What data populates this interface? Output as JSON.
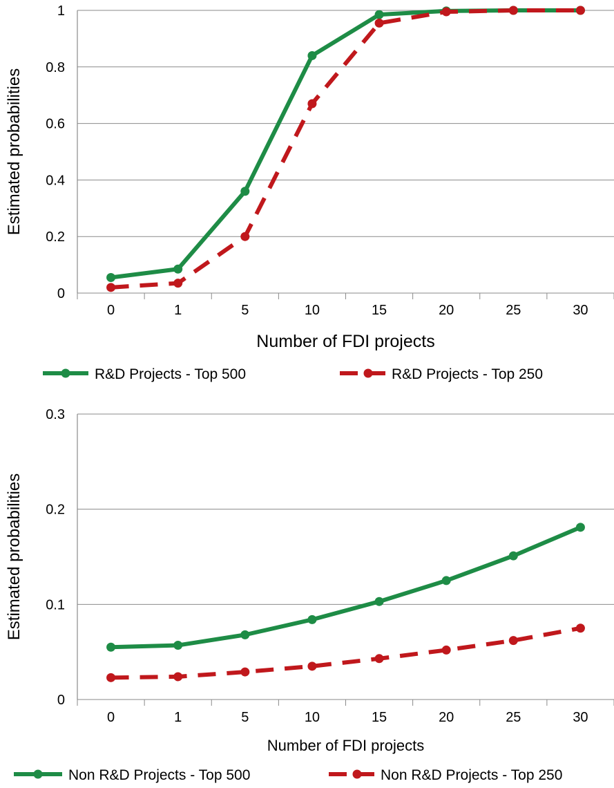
{
  "chart_data": [
    {
      "type": "line",
      "categories": [
        "0",
        "1",
        "5",
        "10",
        "15",
        "20",
        "25",
        "30"
      ],
      "xlabel": "Number of FDI projects",
      "ylabel": "Estimated probabilities",
      "ylim": [
        0,
        1
      ],
      "yticks": [
        "0",
        "0.2",
        "0.4",
        "0.6",
        "0.8",
        "1"
      ],
      "grid": true,
      "legend_position": "bottom",
      "series": [
        {
          "name": "R&D Projects - Top 500",
          "color": "#1e8c46",
          "style": "solid",
          "values": [
            0.055,
            0.085,
            0.36,
            0.84,
            0.985,
            0.998,
            1.0,
            1.0
          ]
        },
        {
          "name": "R&D Projects - Top 250",
          "color": "#c0181c",
          "style": "dashed",
          "values": [
            0.02,
            0.035,
            0.2,
            0.67,
            0.955,
            0.995,
            1.0,
            1.0
          ]
        }
      ]
    },
    {
      "type": "line",
      "categories": [
        "0",
        "1",
        "5",
        "10",
        "15",
        "20",
        "25",
        "30"
      ],
      "xlabel": "Number of FDI projects",
      "ylabel": "Estimated probabilities",
      "ylim": [
        0,
        0.3
      ],
      "yticks": [
        "0",
        "0.1",
        "0.2",
        "0.3"
      ],
      "grid": true,
      "legend_position": "bottom",
      "series": [
        {
          "name": "Non R&D Projects - Top 500",
          "color": "#1e8c46",
          "style": "solid",
          "values": [
            0.055,
            0.057,
            0.068,
            0.084,
            0.103,
            0.125,
            0.151,
            0.181
          ]
        },
        {
          "name": "Non R&D Projects - Top 250",
          "color": "#c0181c",
          "style": "dashed",
          "values": [
            0.023,
            0.024,
            0.029,
            0.035,
            0.043,
            0.052,
            0.062,
            0.075
          ]
        }
      ]
    }
  ]
}
